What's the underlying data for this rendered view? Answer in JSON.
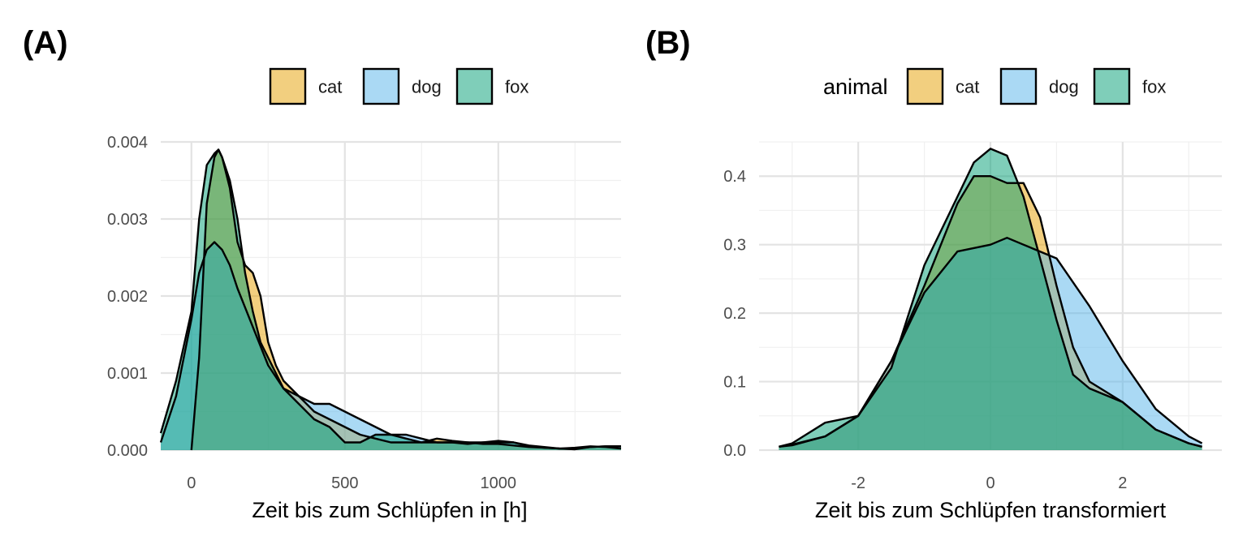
{
  "colors": {
    "cat": "#E69F00",
    "dog": "#56B4E9",
    "fox": "#009E73",
    "outline": "#000000"
  },
  "panels": [
    {
      "tag": "(A)",
      "legend_title": ""
    },
    {
      "tag": "(B)",
      "legend_title": "animal"
    }
  ],
  "chart_data": [
    {
      "type": "area",
      "xlabel": "Zeit bis zum Schlüpfen in [h]",
      "ylabel": "",
      "xlim": [
        -100,
        1400
      ],
      "ylim": [
        0,
        0.004
      ],
      "x_ticks": [
        0,
        500,
        1000
      ],
      "x_tick_labels": [
        "0",
        "500",
        "1000"
      ],
      "y_ticks": [
        0,
        0.001,
        0.002,
        0.003,
        0.004
      ],
      "y_tick_labels": [
        "0.000",
        "0.001",
        "0.002",
        "0.003",
        "0.004"
      ],
      "legend": {
        "title": "",
        "position": "top",
        "entries": [
          "cat",
          "dog",
          "fox"
        ]
      },
      "grid": true,
      "fill_opacity": 0.5,
      "series": [
        {
          "name": "cat",
          "x": [
            0,
            25,
            50,
            75,
            88,
            100,
            125,
            150,
            175,
            200,
            225,
            250,
            275,
            300,
            325,
            350,
            400,
            450,
            500,
            550,
            600,
            650,
            700,
            750,
            800,
            850,
            900,
            950,
            1000,
            1050,
            1100,
            1150,
            1200,
            1250,
            1300,
            1350,
            1400
          ],
          "y": [
            0,
            0.0012,
            0.0032,
            0.0038,
            0.0039,
            0.0038,
            0.0034,
            0.0027,
            0.0024,
            0.0023,
            0.002,
            0.0014,
            0.0011,
            0.0009,
            0.0008,
            0.0007,
            0.0005,
            0.0004,
            0.0003,
            0.0002,
            0.00015,
            0.0001,
            0.0001,
            0.0001,
            0.00015,
            0.00012,
            0.0001,
            8e-05,
            8e-05,
            6e-05,
            4e-05,
            3e-05,
            2e-05,
            3e-05,
            5e-05,
            4e-05,
            2e-05
          ]
        },
        {
          "name": "dog",
          "x": [
            -100,
            -50,
            0,
            25,
            50,
            75,
            100,
            125,
            150,
            200,
            250,
            300,
            350,
            400,
            450,
            500,
            550,
            600,
            650,
            700,
            750,
            800,
            850,
            900,
            950,
            1000,
            1050,
            1100,
            1150,
            1200,
            1250,
            1300,
            1350,
            1400
          ],
          "y": [
            0.0001,
            0.0007,
            0.0017,
            0.0023,
            0.0026,
            0.0027,
            0.0026,
            0.0024,
            0.0021,
            0.0016,
            0.0011,
            0.0008,
            0.0007,
            0.0006,
            0.0006,
            0.0005,
            0.0004,
            0.0003,
            0.0002,
            0.0002,
            0.00015,
            0.0001,
            0.0001,
            8e-05,
            0.0001,
            0.00012,
            0.0001,
            6e-05,
            4e-05,
            2e-05,
            1e-05,
            4e-05,
            5e-05,
            5e-05
          ]
        },
        {
          "name": "fox",
          "x": [
            -100,
            -50,
            0,
            25,
            50,
            75,
            88,
            100,
            125,
            150,
            175,
            200,
            225,
            250,
            300,
            350,
            400,
            450,
            500,
            550,
            600,
            650,
            700,
            750,
            800,
            850,
            900,
            950,
            1000,
            1050,
            1100,
            1150,
            1200,
            1250,
            1300,
            1350,
            1400
          ],
          "y": [
            0.00022,
            0.0009,
            0.0018,
            0.003,
            0.0037,
            0.00385,
            0.0039,
            0.0038,
            0.0035,
            0.003,
            0.0023,
            0.0018,
            0.0014,
            0.0012,
            0.0008,
            0.0006,
            0.0004,
            0.0003,
            0.0001,
            0.0001,
            0.0002,
            0.0002,
            0.00015,
            0.0001,
            0.0001,
            0.0001,
            0.0001,
            0.0001,
            0.0001,
            0.0001,
            5e-05,
            3e-05,
            2e-05,
            2e-05,
            4e-05,
            5e-05,
            5e-05
          ]
        }
      ]
    },
    {
      "type": "area",
      "xlabel": "Zeit bis zum Schlüpfen transformiert",
      "ylabel": "",
      "xlim": [
        -3.5,
        3.5
      ],
      "ylim": [
        0,
        0.45
      ],
      "x_ticks": [
        -2,
        0,
        2
      ],
      "x_tick_labels": [
        "-2",
        "0",
        "2"
      ],
      "y_ticks": [
        0,
        0.1,
        0.2,
        0.3,
        0.4
      ],
      "y_tick_labels": [
        "0.0",
        "0.1",
        "0.2",
        "0.3",
        "0.4"
      ],
      "legend": {
        "title": "animal",
        "position": "top",
        "entries": [
          "cat",
          "dog",
          "fox"
        ]
      },
      "grid": true,
      "fill_opacity": 0.5,
      "series": [
        {
          "name": "cat",
          "x": [
            -3.2,
            -3.0,
            -2.5,
            -2.0,
            -1.5,
            -1.0,
            -0.5,
            -0.25,
            0,
            0.25,
            0.5,
            0.75,
            1.0,
            1.25,
            1.5,
            2.0,
            2.5,
            3.0,
            3.2
          ],
          "y": [
            0.005,
            0.007,
            0.02,
            0.05,
            0.13,
            0.24,
            0.36,
            0.4,
            0.4,
            0.39,
            0.39,
            0.34,
            0.24,
            0.15,
            0.1,
            0.07,
            0.03,
            0.01,
            0.005
          ]
        },
        {
          "name": "dog",
          "x": [
            -3.2,
            -3.0,
            -2.5,
            -2.0,
            -1.5,
            -1.0,
            -0.5,
            0,
            0.25,
            0.5,
            1.0,
            1.5,
            2.0,
            2.5,
            3.0,
            3.2
          ],
          "y": [
            0.005,
            0.008,
            0.02,
            0.05,
            0.13,
            0.23,
            0.29,
            0.3,
            0.31,
            0.3,
            0.28,
            0.21,
            0.13,
            0.06,
            0.02,
            0.01
          ]
        },
        {
          "name": "fox",
          "x": [
            -3.2,
            -3.0,
            -2.5,
            -2.0,
            -1.5,
            -1.0,
            -0.5,
            -0.25,
            0,
            0.25,
            0.5,
            0.75,
            1.0,
            1.25,
            1.5,
            2.0,
            2.5,
            3.0,
            3.2
          ],
          "y": [
            0.005,
            0.01,
            0.04,
            0.05,
            0.12,
            0.27,
            0.37,
            0.42,
            0.44,
            0.43,
            0.37,
            0.28,
            0.19,
            0.11,
            0.09,
            0.07,
            0.03,
            0.01,
            0.005
          ]
        }
      ]
    }
  ]
}
